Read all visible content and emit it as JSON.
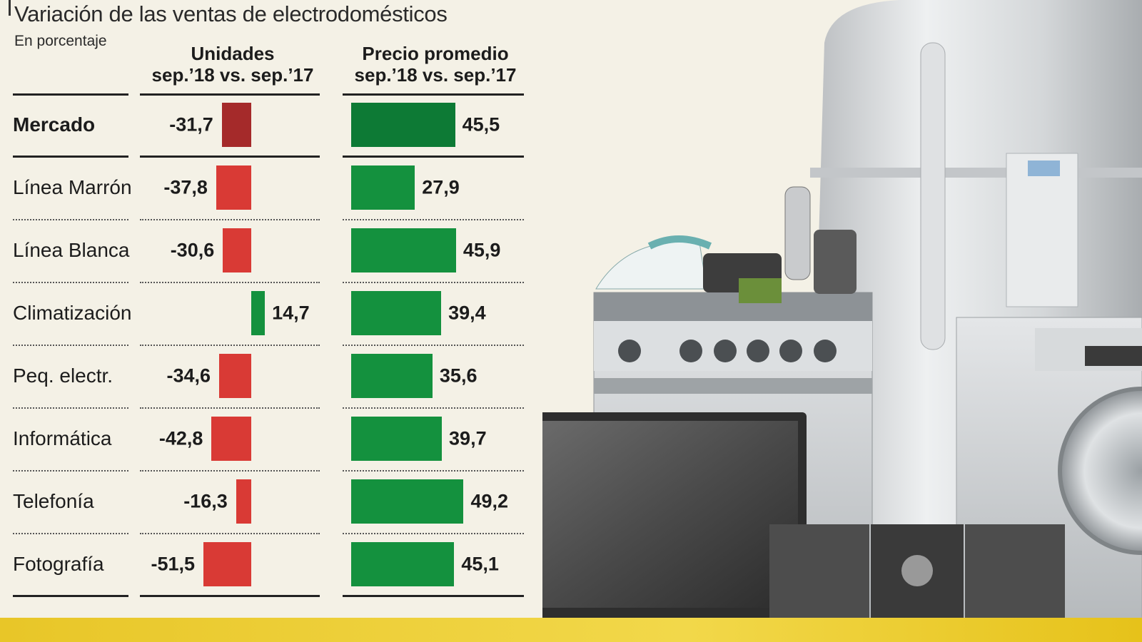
{
  "title": "Variación de las ventas de electrodomésticos",
  "subtitle": "En porcentaje",
  "columns": {
    "units": {
      "line1": "Unidades",
      "line2": "sep.’18 vs. sep.’17"
    },
    "price": {
      "line1": "Precio promedio",
      "line2": "sep.’18 vs. sep.’17"
    }
  },
  "colors": {
    "market_units": "#a52a2a",
    "units": "#d93a35",
    "market_price": "#0d7a35",
    "price": "#14913e",
    "band": "#efd13a"
  },
  "chart_data": {
    "type": "bar",
    "title": "Variación de las ventas de electrodomésticos",
    "subtitle": "En porcentaje",
    "categories": [
      "Mercado",
      "Línea Marrón",
      "Línea Blanca",
      "Climatización",
      "Peq. electr.",
      "Informática",
      "Telefonía",
      "Fotografía"
    ],
    "category_labels": [
      "Mercado",
      "Línea Marrón",
      "Línea Blanca",
      "Climatización",
      "Peq. electr.",
      "Informática",
      "Telefonía",
      "Fotografía"
    ],
    "series": [
      {
        "name": "Unidades sep.’18 vs. sep.’17",
        "values": [
          -31.7,
          -37.8,
          -30.6,
          14.7,
          -34.6,
          -42.8,
          -16.3,
          -51.5
        ],
        "labels": [
          "-31,7",
          "-37,8",
          "-30,6",
          "14,7",
          "-34,6",
          "-42,8",
          "-16,3",
          "-51,5"
        ]
      },
      {
        "name": "Precio promedio sep.’18 vs. sep.’17",
        "values": [
          45.5,
          27.9,
          45.9,
          39.4,
          35.6,
          39.7,
          49.2,
          45.1
        ],
        "labels": [
          "45,5",
          "27,9",
          "45,9",
          "39,4",
          "35,6",
          "39,7",
          "49,2",
          "45,1"
        ]
      }
    ],
    "orientation": "horizontal",
    "grid": false,
    "legend": "none"
  }
}
